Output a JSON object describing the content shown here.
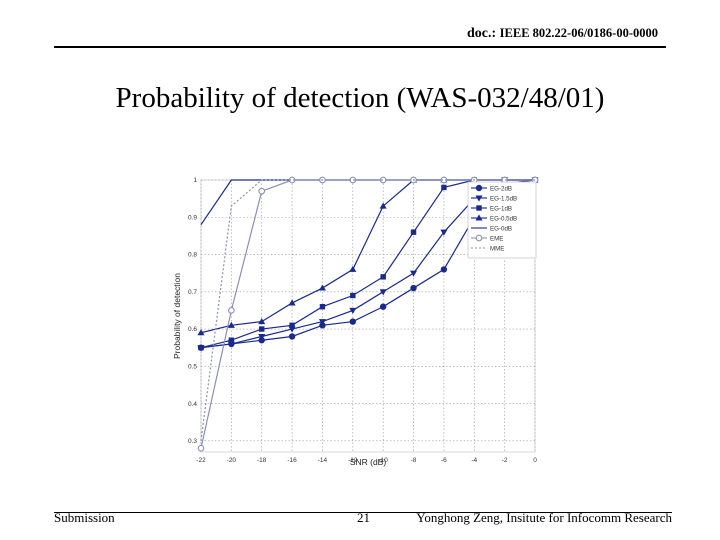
{
  "header": {
    "doc_label": "doc.:",
    "doc_number": "IEEE 802.22-06/0186-00-0000"
  },
  "title": "Probability of detection (WAS-032/48/01)",
  "footer": {
    "left": "Submission",
    "center": "21",
    "right": "Yonghong Zeng, Insitute for Infocomm Research"
  },
  "chart_data": {
    "type": "line",
    "xlabel": "SNR (dB)",
    "ylabel": "Probability of detection",
    "x": [
      -22,
      -20,
      -18,
      -16,
      -14,
      -12,
      -10,
      -8,
      -6,
      -4,
      -2,
      0
    ],
    "x_tick_labels": [
      "-22",
      "-20",
      "-18",
      "-16",
      "-14",
      "-12",
      "-10",
      "-8",
      "-6",
      "-4",
      "-2",
      "0"
    ],
    "y_ticks": [
      0.3,
      0.4,
      0.5,
      0.6,
      0.7,
      0.8,
      0.9,
      1
    ],
    "y_tick_labels": [
      "0.3",
      "0.4",
      "0.5",
      "0.6",
      "0.7",
      "0.8",
      "0.9",
      "1"
    ],
    "xlim": [
      -22,
      0
    ],
    "ylim": [
      0.27,
      1.0
    ],
    "grid": true,
    "legend_position": "top-right",
    "series": [
      {
        "name": "EG-2dB",
        "marker": "circle",
        "dash": "",
        "color": "#1a2a8c",
        "values": [
          0.55,
          0.56,
          0.57,
          0.58,
          0.61,
          0.62,
          0.66,
          0.71,
          0.76,
          0.9,
          0.99,
          1.0
        ]
      },
      {
        "name": "EG-1.5dB",
        "marker": "triangle-down",
        "dash": "",
        "color": "#1a2a8c",
        "values": [
          0.55,
          0.56,
          0.58,
          0.6,
          0.62,
          0.65,
          0.7,
          0.75,
          0.86,
          0.95,
          1.0,
          1.0
        ]
      },
      {
        "name": "EG-1dB",
        "marker": "square",
        "dash": "",
        "color": "#1a2a8c",
        "values": [
          0.55,
          0.57,
          0.6,
          0.61,
          0.66,
          0.69,
          0.74,
          0.86,
          0.98,
          1.0,
          1.0,
          1.0
        ]
      },
      {
        "name": "EG-0.5dB",
        "marker": "triangle-up",
        "dash": "",
        "color": "#1a2a8c",
        "values": [
          0.59,
          0.61,
          0.62,
          0.67,
          0.71,
          0.76,
          0.93,
          1.0,
          1.0,
          1.0,
          1.0,
          1.0
        ]
      },
      {
        "name": "EG-0dB",
        "marker": "none",
        "dash": "",
        "color": "#1a2a8c",
        "values": [
          0.88,
          1.0,
          1.0,
          1.0,
          1.0,
          1.0,
          1.0,
          1.0,
          1.0,
          1.0,
          1.0,
          1.0
        ]
      },
      {
        "name": "EME",
        "marker": "circle-open",
        "dash": "",
        "color": "#8a8fb8",
        "values": [
          0.28,
          0.65,
          0.97,
          1.0,
          1.0,
          1.0,
          1.0,
          1.0,
          1.0,
          1.0,
          1.0,
          1.0
        ]
      },
      {
        "name": "MME",
        "marker": "none",
        "dash": "2,2",
        "color": "#8a8fb8",
        "values": [
          0.3,
          0.93,
          1.0,
          1.0,
          1.0,
          1.0,
          1.0,
          1.0,
          1.0,
          1.0,
          1.0,
          1.0
        ]
      }
    ]
  }
}
